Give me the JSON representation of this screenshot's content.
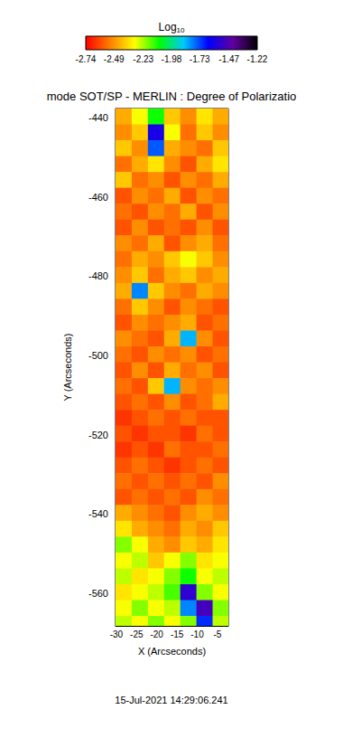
{
  "chart_data": {
    "type": "heatmap",
    "title": "mode SOT/SP - MERLIN : Degree of Polarizatio",
    "annotations": [
      "15-Jul-2021 14:29:06.241"
    ],
    "x_label": "X (Arcseconds)",
    "y_label": "Y (Arcseconds)",
    "xlim": [
      -30.2,
      -2.3
    ],
    "ylim": [
      -568.2,
      -437.7
    ],
    "xticks": [
      -30,
      -25,
      -20,
      -15,
      -10,
      -5
    ],
    "yticks": [
      -560,
      -540,
      -520,
      -500,
      -480,
      -460,
      -440
    ],
    "x": [
      -28.2,
      -24.2,
      -20.2,
      -16.2,
      -12.2,
      -8.2,
      -4.2
    ],
    "y": [
      -439.7,
      -443.7,
      -447.7,
      -451.7,
      -455.7,
      -459.7,
      -463.7,
      -467.7,
      -471.7,
      -475.7,
      -479.7,
      -483.7,
      -487.7,
      -491.7,
      -495.7,
      -499.7,
      -503.7,
      -507.7,
      -511.7,
      -515.7,
      -519.7,
      -523.7,
      -527.7,
      -531.7,
      -535.7,
      -539.7,
      -543.7,
      -547.7,
      -551.7,
      -555.7,
      -559.7,
      -563.7,
      -567.7
    ],
    "values": [
      [
        -2.45,
        -2.3,
        -2.1,
        -2.4,
        -2.5,
        -2.35,
        -2.45
      ],
      [
        -2.5,
        -2.4,
        -1.6,
        -2.3,
        -2.55,
        -2.4,
        -2.5
      ],
      [
        -2.4,
        -2.5,
        -1.75,
        -2.45,
        -2.5,
        -2.55,
        -2.4
      ],
      [
        -2.55,
        -2.45,
        -2.35,
        -2.5,
        -2.6,
        -2.45,
        -2.35
      ],
      [
        -2.4,
        -2.55,
        -2.5,
        -2.6,
        -2.5,
        -2.55,
        -2.45
      ],
      [
        -2.6,
        -2.5,
        -2.55,
        -2.45,
        -2.6,
        -2.5,
        -2.55
      ],
      [
        -2.55,
        -2.6,
        -2.5,
        -2.55,
        -2.45,
        -2.6,
        -2.5
      ],
      [
        -2.6,
        -2.5,
        -2.6,
        -2.55,
        -2.6,
        -2.5,
        -2.6
      ],
      [
        -2.5,
        -2.55,
        -2.45,
        -2.6,
        -2.5,
        -2.45,
        -2.55
      ],
      [
        -2.55,
        -2.45,
        -2.5,
        -2.4,
        -2.3,
        -2.4,
        -2.5
      ],
      [
        -2.5,
        -2.4,
        -2.55,
        -2.45,
        -2.4,
        -2.5,
        -2.45
      ],
      [
        -2.45,
        -1.8,
        -2.4,
        -2.5,
        -2.55,
        -2.45,
        -2.5
      ],
      [
        -2.55,
        -2.4,
        -2.5,
        -2.6,
        -2.5,
        -2.55,
        -2.6
      ],
      [
        -2.6,
        -2.5,
        -2.55,
        -2.5,
        -2.45,
        -2.6,
        -2.55
      ],
      [
        -2.5,
        -2.55,
        -2.6,
        -2.45,
        -1.85,
        -2.5,
        -2.6
      ],
      [
        -2.55,
        -2.6,
        -2.5,
        -2.55,
        -2.5,
        -2.6,
        -2.55
      ],
      [
        -2.6,
        -2.5,
        -2.6,
        -2.45,
        -2.55,
        -2.5,
        -2.6
      ],
      [
        -2.55,
        -2.6,
        -2.4,
        -1.85,
        -2.5,
        -2.55,
        -2.5
      ],
      [
        -2.6,
        -2.55,
        -2.6,
        -2.5,
        -2.6,
        -2.55,
        -2.45
      ],
      [
        -2.65,
        -2.6,
        -2.55,
        -2.6,
        -2.55,
        -2.6,
        -2.6
      ],
      [
        -2.6,
        -2.65,
        -2.6,
        -2.6,
        -2.65,
        -2.55,
        -2.6
      ],
      [
        -2.65,
        -2.6,
        -2.65,
        -2.55,
        -2.6,
        -2.6,
        -2.55
      ],
      [
        -2.6,
        -2.55,
        -2.6,
        -2.65,
        -2.6,
        -2.55,
        -2.6
      ],
      [
        -2.55,
        -2.6,
        -2.55,
        -2.6,
        -2.55,
        -2.6,
        -2.5
      ],
      [
        -2.6,
        -2.55,
        -2.6,
        -2.55,
        -2.6,
        -2.5,
        -2.55
      ],
      [
        -2.45,
        -2.5,
        -2.55,
        -2.6,
        -2.5,
        -2.45,
        -2.5
      ],
      [
        -2.35,
        -2.45,
        -2.5,
        -2.55,
        -2.45,
        -2.5,
        -2.4
      ],
      [
        -2.2,
        -2.3,
        -2.45,
        -2.5,
        -2.4,
        -2.45,
        -2.35
      ],
      [
        -2.3,
        -2.25,
        -2.4,
        -2.3,
        -2.2,
        -2.35,
        -2.3
      ],
      [
        -2.25,
        -2.35,
        -2.3,
        -2.2,
        -2.1,
        -2.3,
        -2.25
      ],
      [
        -2.35,
        -2.3,
        -2.25,
        -2.15,
        -1.55,
        -2.2,
        -2.3
      ],
      [
        -2.3,
        -2.2,
        -2.3,
        -2.25,
        -1.8,
        -1.5,
        -2.2
      ],
      [
        -2.25,
        -2.3,
        -2.2,
        -2.3,
        -2.2,
        -1.7,
        -2.25
      ]
    ],
    "colorbar": {
      "label": "Log10",
      "range": [
        -2.74,
        -1.22
      ],
      "ticks": [
        -2.74,
        -2.49,
        -2.23,
        -1.98,
        -1.73,
        -1.47,
        -1.22
      ]
    }
  }
}
